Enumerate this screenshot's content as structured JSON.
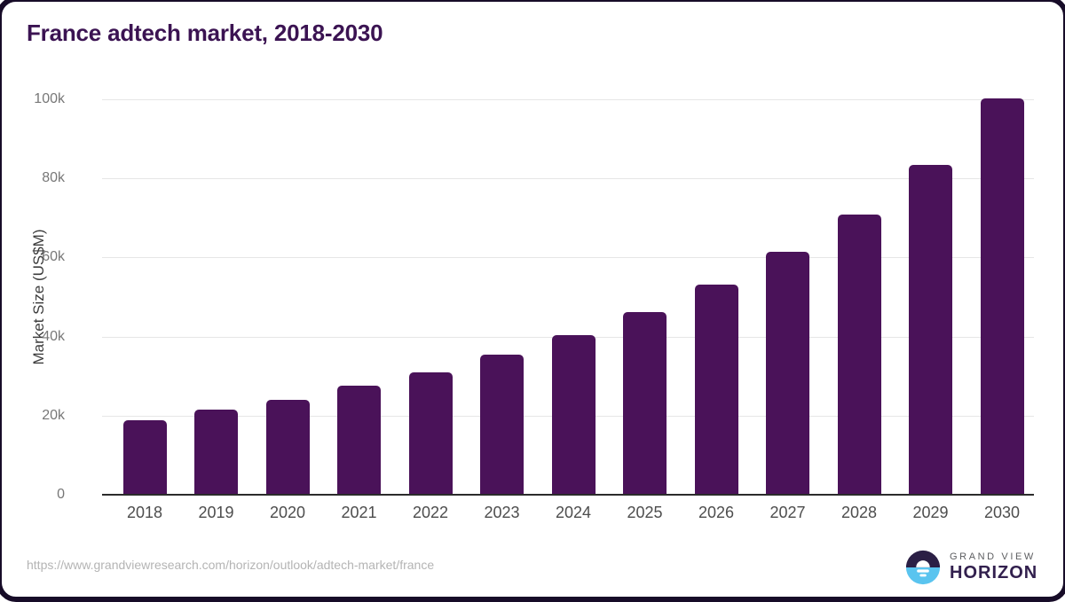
{
  "title": "France adtech market, 2018-2030",
  "chart_data": {
    "type": "bar",
    "title": "France adtech market, 2018-2030",
    "xlabel": "",
    "ylabel": "Market Size (US$M)",
    "unit": "US$M",
    "categories": [
      "2018",
      "2019",
      "2020",
      "2021",
      "2022",
      "2023",
      "2024",
      "2025",
      "2026",
      "2027",
      "2028",
      "2029",
      "2030"
    ],
    "values": [
      18800,
      21600,
      23900,
      27500,
      31000,
      35400,
      40400,
      46300,
      53200,
      61400,
      70900,
      83400,
      100300
    ],
    "ylim": [
      0,
      100000
    ],
    "ytick_values": [
      0,
      20000,
      40000,
      60000,
      80000,
      100000
    ],
    "ytick_labels": [
      "0",
      "20k",
      "40k",
      "60k",
      "80k",
      "100k"
    ],
    "grid": true,
    "legend": "none",
    "bar_color": "#4a1259",
    "gridline_color": "#e6e6e6",
    "axis_line_color": "#2b2b2b",
    "title_color": "#3b1352",
    "tick_label_color": "#777777",
    "x_label_color": "#4d4d4d"
  },
  "footer": {
    "source_url": "https://www.grandviewresearch.com/horizon/outlook/adtech-market/france",
    "logo": {
      "line1": "GRAND VIEW",
      "line2": "HORIZON",
      "mark_top_color": "#2b1f45",
      "mark_bottom_color": "#5ac4ef",
      "text_color": "#32204e"
    }
  }
}
